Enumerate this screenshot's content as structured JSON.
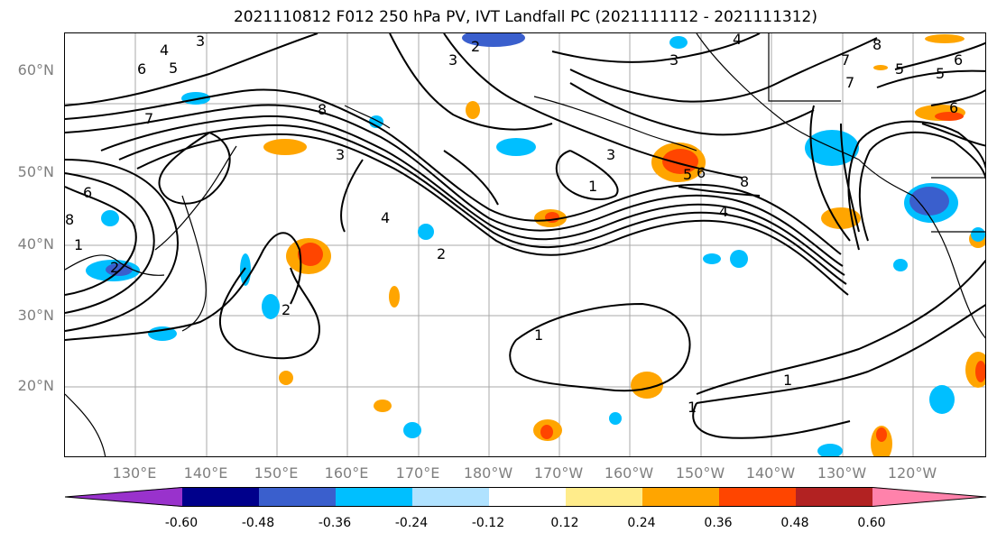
{
  "title": "2021110812 F012 250 hPa PV, IVT Landfall PC (2021111112 - 2021111312)",
  "lat_labels": [
    "60°N",
    "50°N",
    "40°N",
    "30°N",
    "20°N"
  ],
  "lon_labels": [
    "130°E",
    "140°E",
    "150°E",
    "160°E",
    "170°E",
    "180°W",
    "170°W",
    "160°W",
    "150°W",
    "140°W",
    "130°W",
    "120°W"
  ],
  "colorbar": {
    "ticks": [
      "-0.60",
      "-0.48",
      "-0.36",
      "-0.24",
      "-0.12",
      "0.12",
      "0.24",
      "0.36",
      "0.48",
      "0.60"
    ],
    "colors": [
      "#9932cc",
      "#00008b",
      "#3a5fcd",
      "#00bfff",
      "#b0e2ff",
      "#ffffff",
      "#ffec8b",
      "#ffa500",
      "#ff4500",
      "#b22222",
      "#ff82ab"
    ]
  },
  "contour_labels": [
    "3",
    "4",
    "5",
    "6",
    "7",
    "8",
    "2",
    "1",
    "1",
    "1",
    "2",
    "3",
    "3",
    "4",
    "6",
    "8",
    "5",
    "6",
    "8",
    "7",
    "6",
    "5",
    "4",
    "3",
    "2",
    "1",
    "8",
    "7",
    "6",
    "5",
    "4",
    "3",
    "2",
    "1"
  ]
}
